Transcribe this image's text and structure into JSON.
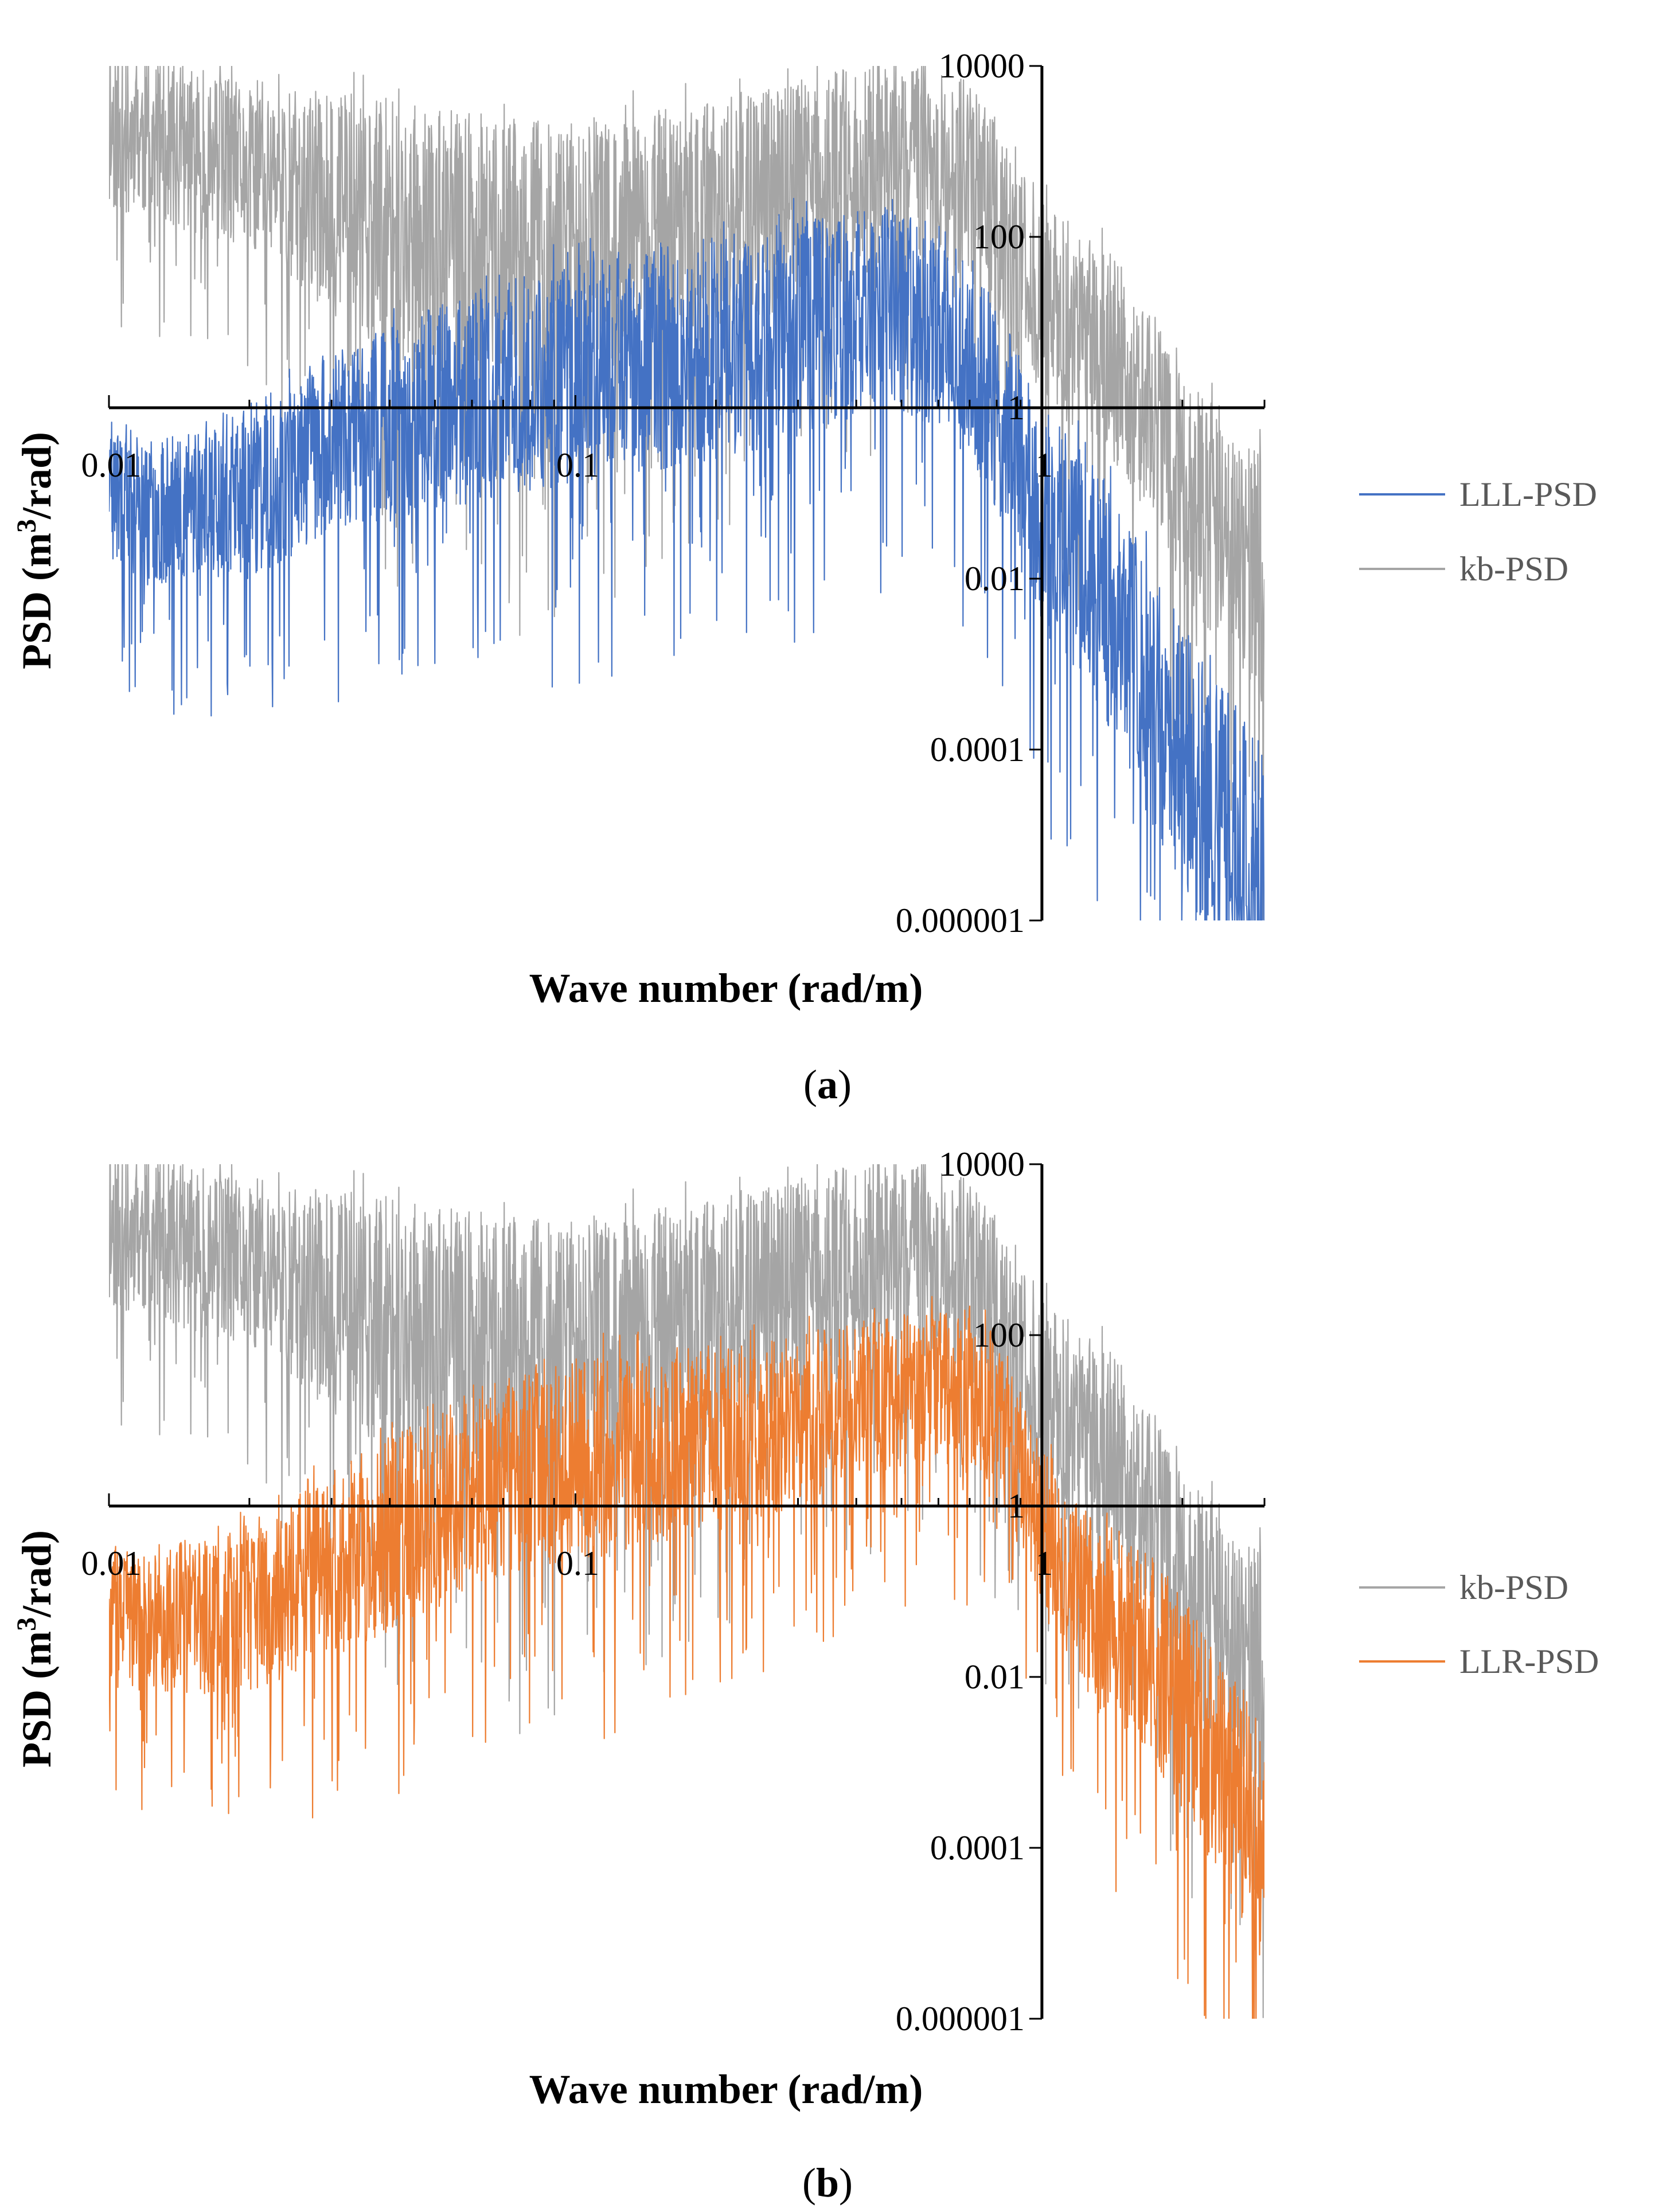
{
  "chart_data": [
    {
      "type": "line",
      "panel": "a",
      "caption_letter": "a",
      "xscale": "log",
      "yscale": "log",
      "xlim": [
        0.01,
        3.0
      ],
      "ylim": [
        1e-06,
        10000
      ],
      "x_crosses_y_at": 1,
      "y_crosses_x_at": 1,
      "xlabel": "Wave number (rad/m)",
      "ylabel_prefix": "PSD  (m",
      "ylabel_sup": "3",
      "ylabel_suffix": "/rad)",
      "xtick_labels": [
        {
          "value": 0.01,
          "label": "0.01"
        },
        {
          "value": 0.1,
          "label": "0.1"
        },
        {
          "value": 1,
          "label": "1"
        }
      ],
      "ytick_labels": [
        {
          "value": 10000,
          "label": "10000"
        },
        {
          "value": 100,
          "label": "100"
        },
        {
          "value": 1,
          "label": "1"
        },
        {
          "value": 0.01,
          "label": "0.01"
        },
        {
          "value": 0.0001,
          "label": "0.0001"
        },
        {
          "value": 1e-06,
          "label": "0.000001"
        }
      ],
      "legend_position": "right",
      "series": [
        {
          "name": "kb-PSD",
          "color": "#a5a5a5",
          "x": [
            0.01,
            0.015,
            0.02,
            0.03,
            0.05,
            0.08,
            0.12,
            0.2,
            0.3,
            0.45,
            0.6,
            0.75,
            0.9,
            1.1,
            1.4,
            1.8,
            2.3,
            3.0
          ],
          "mid": [
            2000,
            1000,
            600,
            250,
            80,
            60,
            80,
            150,
            350,
            700,
            900,
            250,
            40,
            12,
            4,
            0.5,
            0.05,
            0.01
          ],
          "band": [
            1.0,
            1.0,
            1.0,
            1.3,
            1.6,
            1.6,
            1.5,
            1.4,
            1.3,
            1.2,
            1.2,
            1.2,
            1.2,
            1.2,
            1.2,
            1.3,
            1.4,
            1.5
          ],
          "seed": 11
        },
        {
          "name": "LLL-PSD",
          "color": "#4472c4",
          "x": [
            0.01,
            0.012,
            0.015,
            0.02,
            0.03,
            0.05,
            0.08,
            0.12,
            0.2,
            0.3,
            0.45,
            0.6,
            0.8,
            1.0,
            1.3,
            1.7,
            2.2,
            3.0
          ],
          "mid": [
            0.1,
            0.05,
            0.08,
            0.1,
            0.4,
            1,
            2,
            3,
            5,
            8,
            15,
            10,
            1,
            0.05,
            0.01,
            0.0005,
            3e-05,
            3e-06
          ],
          "band": [
            0.8,
            0.8,
            0.9,
            1.0,
            1.1,
            1.2,
            1.3,
            1.3,
            1.3,
            1.3,
            1.2,
            1.2,
            1.2,
            1.3,
            1.4,
            1.5,
            1.6,
            1.7
          ],
          "seed": 23
        }
      ]
    },
    {
      "type": "line",
      "panel": "b",
      "caption_letter": "b",
      "xscale": "log",
      "yscale": "log",
      "xlim": [
        0.01,
        3.0
      ],
      "ylim": [
        1e-06,
        10000
      ],
      "x_crosses_y_at": 1,
      "y_crosses_x_at": 1,
      "xlabel": "Wave number (rad/m)",
      "ylabel_prefix": "PSD  (m",
      "ylabel_sup": "3",
      "ylabel_suffix": "/rad)",
      "xtick_labels": [
        {
          "value": 0.01,
          "label": "0.01"
        },
        {
          "value": 0.1,
          "label": "0.1"
        },
        {
          "value": 1,
          "label": "1"
        }
      ],
      "ytick_labels": [
        {
          "value": 10000,
          "label": "10000"
        },
        {
          "value": 100,
          "label": "100"
        },
        {
          "value": 1,
          "label": "1"
        },
        {
          "value": 0.01,
          "label": "0.01"
        },
        {
          "value": 0.0001,
          "label": "0.0001"
        },
        {
          "value": 1e-06,
          "label": "0.000001"
        }
      ],
      "legend_position": "right",
      "series": [
        {
          "name": "kb-PSD",
          "color": "#a5a5a5",
          "x": [
            0.01,
            0.015,
            0.02,
            0.03,
            0.05,
            0.08,
            0.12,
            0.2,
            0.3,
            0.45,
            0.6,
            0.75,
            0.9,
            1.1,
            1.4,
            1.8,
            2.3,
            3.0
          ],
          "mid": [
            2000,
            1000,
            600,
            250,
            80,
            60,
            80,
            150,
            350,
            700,
            900,
            250,
            40,
            12,
            4,
            0.5,
            0.05,
            0.01
          ],
          "band": [
            1.0,
            1.0,
            1.0,
            1.3,
            1.6,
            1.6,
            1.5,
            1.4,
            1.3,
            1.2,
            1.2,
            1.2,
            1.2,
            1.2,
            1.2,
            1.3,
            1.4,
            1.5
          ],
          "seed": 11
        },
        {
          "name": "LLR-PSD",
          "color": "#ed7d31",
          "x": [
            0.01,
            0.012,
            0.015,
            0.02,
            0.03,
            0.05,
            0.08,
            0.12,
            0.2,
            0.3,
            0.45,
            0.6,
            0.8,
            1.0,
            1.3,
            1.7,
            2.2,
            3.0
          ],
          "mid": [
            0.05,
            0.04,
            0.05,
            0.06,
            0.2,
            1,
            3,
            4,
            6,
            10,
            20,
            25,
            15,
            0.5,
            0.05,
            0.02,
            0.002,
            0.0001
          ],
          "band": [
            0.8,
            0.8,
            0.9,
            1.0,
            1.1,
            1.2,
            1.2,
            1.2,
            1.1,
            1.0,
            0.9,
            0.9,
            0.9,
            1.0,
            1.1,
            1.2,
            1.3,
            1.4
          ],
          "seed": 37
        }
      ]
    }
  ]
}
